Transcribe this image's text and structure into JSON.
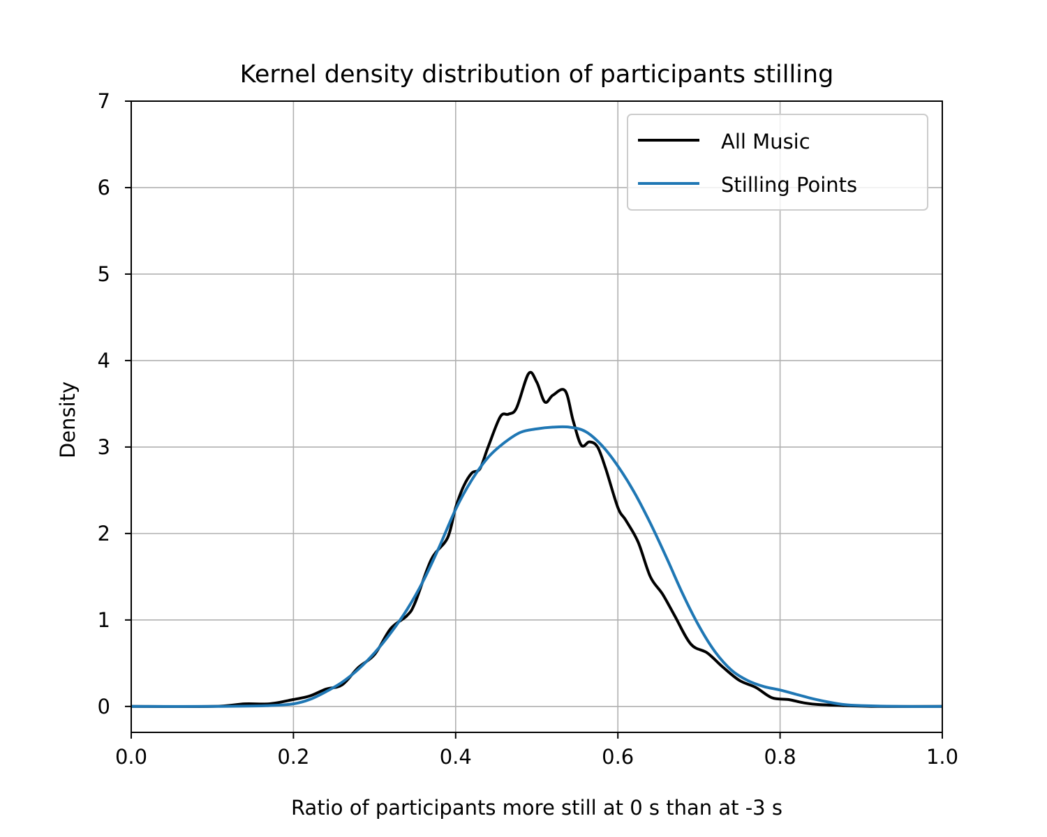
{
  "chart_data": {
    "type": "line",
    "title": "Kernel density distribution of participants stilling",
    "xlabel": "Ratio of participants more still at 0 s than at -3 s",
    "ylabel": "Density",
    "xlim": [
      0.0,
      1.0
    ],
    "ylim": [
      -0.3,
      7.0
    ],
    "xticks": [
      "0.0",
      "0.2",
      "0.4",
      "0.6",
      "0.8",
      "1.0"
    ],
    "yticks": [
      "0",
      "1",
      "2",
      "3",
      "4",
      "5",
      "6",
      "7"
    ],
    "grid": true,
    "legend_position": "top-right",
    "series": [
      {
        "name": "All Music",
        "color": "#000000",
        "x": [
          0.0,
          0.1,
          0.14,
          0.17,
          0.2,
          0.22,
          0.24,
          0.26,
          0.28,
          0.3,
          0.32,
          0.34,
          0.35,
          0.37,
          0.39,
          0.4,
          0.41,
          0.42,
          0.43,
          0.44,
          0.455,
          0.465,
          0.475,
          0.49,
          0.5,
          0.51,
          0.52,
          0.535,
          0.545,
          0.555,
          0.565,
          0.575,
          0.585,
          0.6,
          0.61,
          0.625,
          0.64,
          0.655,
          0.67,
          0.69,
          0.71,
          0.73,
          0.75,
          0.77,
          0.79,
          0.81,
          0.83,
          0.85,
          0.88,
          0.92,
          1.0
        ],
        "values": [
          0.0,
          0.0,
          0.03,
          0.03,
          0.08,
          0.12,
          0.2,
          0.25,
          0.45,
          0.6,
          0.9,
          1.05,
          1.2,
          1.7,
          1.95,
          2.3,
          2.55,
          2.7,
          2.75,
          3.0,
          3.35,
          3.38,
          3.45,
          3.85,
          3.75,
          3.52,
          3.6,
          3.65,
          3.3,
          3.02,
          3.06,
          3.0,
          2.75,
          2.3,
          2.15,
          1.9,
          1.5,
          1.3,
          1.05,
          0.72,
          0.62,
          0.45,
          0.3,
          0.22,
          0.1,
          0.08,
          0.04,
          0.02,
          0.01,
          0.0,
          0.0
        ]
      },
      {
        "name": "Stilling Points",
        "color": "#1f77b4",
        "x": [
          0.0,
          0.1,
          0.17,
          0.2,
          0.22,
          0.24,
          0.26,
          0.28,
          0.3,
          0.32,
          0.34,
          0.36,
          0.38,
          0.4,
          0.42,
          0.44,
          0.46,
          0.48,
          0.5,
          0.52,
          0.54,
          0.56,
          0.58,
          0.6,
          0.62,
          0.64,
          0.66,
          0.68,
          0.7,
          0.72,
          0.74,
          0.76,
          0.78,
          0.8,
          0.82,
          0.84,
          0.86,
          0.88,
          0.9,
          0.95,
          1.0
        ],
        "values": [
          0.0,
          0.0,
          0.01,
          0.03,
          0.08,
          0.17,
          0.28,
          0.43,
          0.62,
          0.85,
          1.12,
          1.45,
          1.85,
          2.28,
          2.62,
          2.88,
          3.05,
          3.17,
          3.21,
          3.23,
          3.23,
          3.18,
          3.02,
          2.78,
          2.48,
          2.12,
          1.72,
          1.3,
          0.93,
          0.63,
          0.42,
          0.3,
          0.23,
          0.19,
          0.14,
          0.09,
          0.05,
          0.02,
          0.01,
          0.0,
          0.0
        ]
      }
    ]
  }
}
